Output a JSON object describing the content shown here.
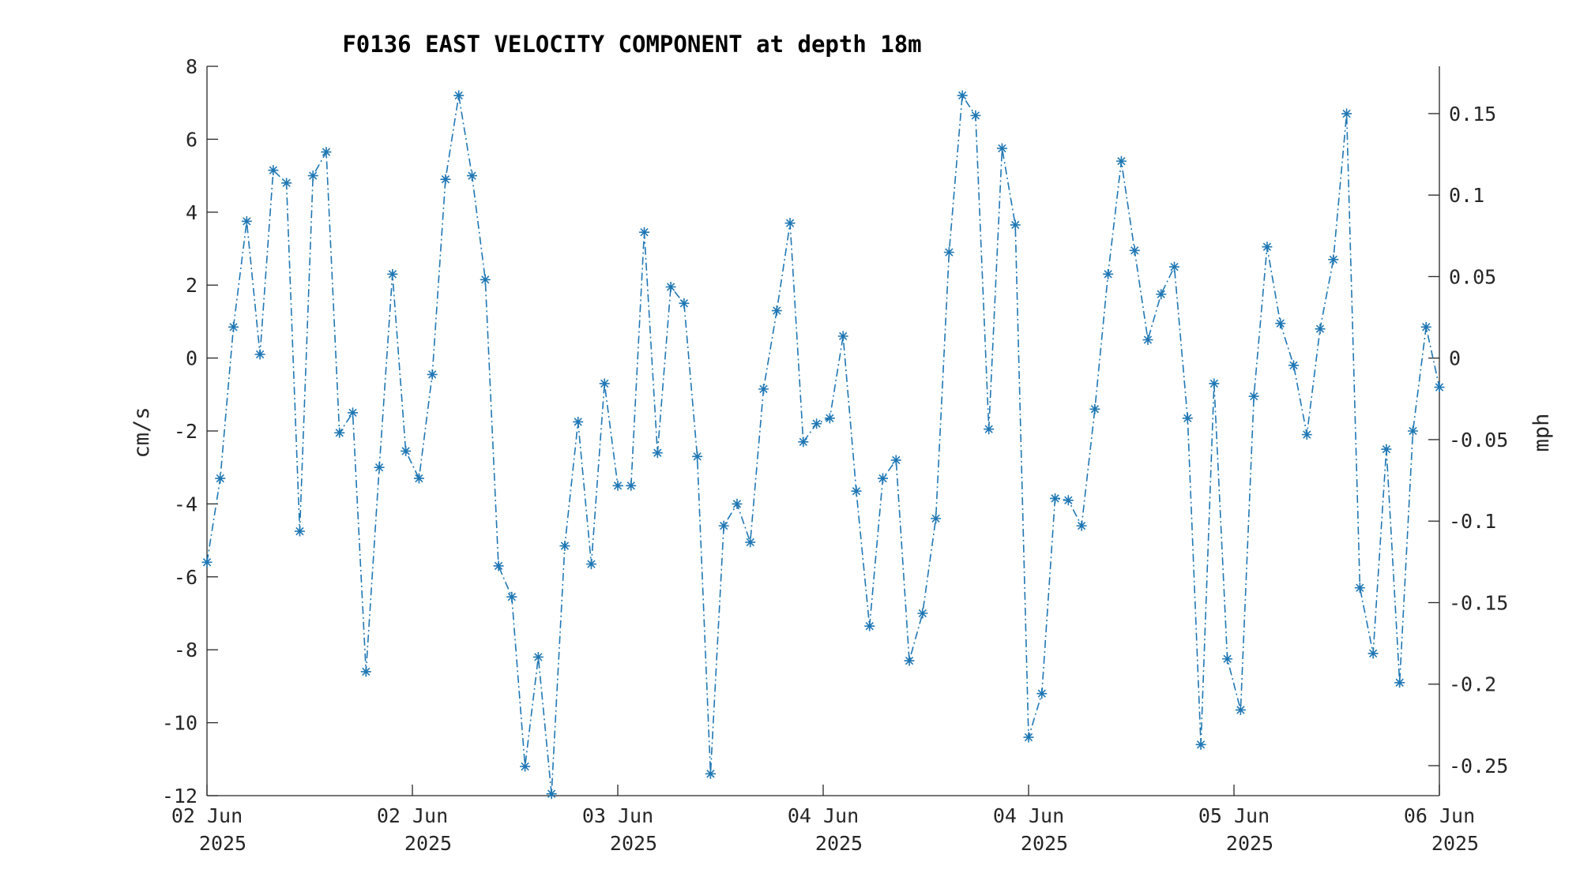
{
  "chart_data": {
    "type": "line",
    "title": "F0136 EAST VELOCITY COMPONENT at depth 18m",
    "ylabel": "cm/s",
    "ylabel_right": "mph",
    "ylim": [
      -12,
      8
    ],
    "yticks": [
      "8",
      "6",
      "4",
      "2",
      "0",
      "-2",
      "-4",
      "-6",
      "-8",
      "-10",
      "-12"
    ],
    "ylim_right": [
      -0.2684,
      0.179
    ],
    "yticks_right": [
      "0.15",
      "0.1",
      "0.05",
      "0",
      "-0.05",
      "-0.1",
      "-0.15",
      "-0.2",
      "-0.25"
    ],
    "xlim": [
      "2025-06-02T00:00",
      "2025-06-06T00:00"
    ],
    "xticks": [
      {
        "line1": "02 Jun",
        "line2": "2025"
      },
      {
        "line1": "02 Jun",
        "line2": "2025"
      },
      {
        "line1": "03 Jun",
        "line2": "2025"
      },
      {
        "line1": "04 Jun",
        "line2": "2025"
      },
      {
        "line1": "04 Jun",
        "line2": "2025"
      },
      {
        "line1": "05 Jun",
        "line2": "2025"
      },
      {
        "line1": "06 Jun",
        "line2": "2025"
      }
    ],
    "grid": false,
    "series": [
      {
        "color": "#1f77b4",
        "line_style": "dash-dot",
        "marker": "asterisk",
        "values": [
          -5.6,
          -3.3,
          0.85,
          3.75,
          0.1,
          5.15,
          4.8,
          -4.75,
          5.0,
          5.65,
          -2.05,
          -1.5,
          -8.6,
          -3.0,
          2.3,
          -2.55,
          -3.3,
          -0.45,
          4.9,
          7.2,
          5.0,
          2.15,
          -5.7,
          -6.55,
          -11.2,
          -8.2,
          -11.95,
          -5.15,
          -1.75,
          -5.65,
          -0.7,
          -3.5,
          -3.5,
          3.45,
          -2.6,
          1.95,
          1.5,
          -2.7,
          -11.4,
          -4.6,
          -4.0,
          -5.05,
          -0.85,
          1.3,
          3.7,
          -2.3,
          -1.8,
          -1.65,
          0.6,
          -3.65,
          -7.35,
          -3.3,
          -2.8,
          -8.3,
          -7.0,
          -4.4,
          2.9,
          7.2,
          6.65,
          -1.95,
          5.75,
          3.65,
          -10.4,
          -9.2,
          -3.85,
          -3.9,
          -4.6,
          -1.4,
          2.3,
          5.4,
          2.95,
          0.5,
          1.75,
          2.5,
          -1.65,
          -10.6,
          -0.7,
          -8.25,
          -9.65,
          -1.05,
          3.05,
          0.95,
          -0.2,
          -2.1,
          0.8,
          2.7,
          6.7,
          -6.3,
          -8.1,
          -2.5,
          -8.9,
          -2.0,
          0.85,
          -0.8
        ]
      }
    ]
  }
}
